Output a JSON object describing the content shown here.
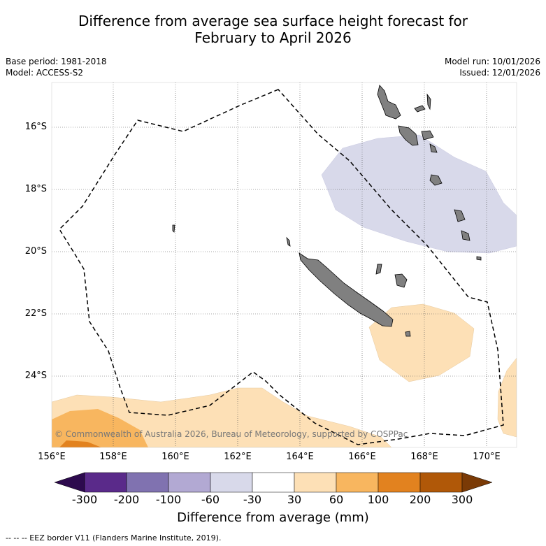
{
  "title_line1": "Difference from average sea surface height forecast for",
  "title_line2": "February to April 2026",
  "base_period": "Base period: 1981-2018",
  "model": "Model: ACCESS-S2",
  "model_run": "Model run: 10/01/2026",
  "issued": "Issued: 12/01/2026",
  "copyright": "© Commonwealth of Australia 2026, Bureau of Meteorology, supported by COSPPac",
  "latitudes": [
    "16°S",
    "18°S",
    "20°S",
    "22°S",
    "24°S"
  ],
  "longitudes": [
    "156°E",
    "158°E",
    "160°E",
    "162°E",
    "164°E",
    "166°E",
    "168°E",
    "170°E"
  ],
  "colorbar": {
    "label": "Difference from average (mm)",
    "ticks": [
      "-300",
      "-200",
      "-100",
      "-60",
      "-30",
      "30",
      "60",
      "100",
      "200",
      "300"
    ],
    "colors": [
      "#2d0a4e",
      "#5a2a8a",
      "#8072b0",
      "#b2a9d3",
      "#d8d9ea",
      "#ffffff",
      "#fde0b6",
      "#f8b65f",
      "#e2821f",
      "#b05808",
      "#7a3a06"
    ]
  },
  "legend": "--  --  -- EEZ border V11 (Flanders Marine Institute, 2019)."
}
